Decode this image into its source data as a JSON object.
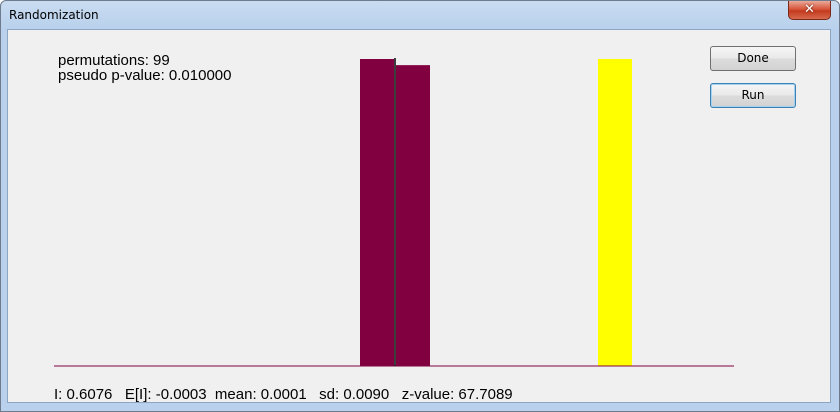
{
  "window": {
    "title": "Randomization"
  },
  "info": {
    "permutations_text": "permutations: 99",
    "pvalue_text": "pseudo p-value: 0.010000"
  },
  "buttons": {
    "done_label": "Done",
    "run_label": "Run"
  },
  "stats": {
    "summary_text": "I: 0.6076   E[I]: -0.0003  mean: 0.0001   sd: 0.0090   z-value: 67.7089"
  },
  "chart_data": {
    "type": "bar",
    "title": "",
    "xlabel": "",
    "ylabel": "",
    "bars": [
      {
        "x": -0.001,
        "value": 1.0,
        "color": "#800040"
      },
      {
        "x": 0.001,
        "value": 0.98,
        "color": "#800040"
      },
      {
        "x": 0.6076,
        "value": 1.0,
        "color": "#ffff00"
      }
    ],
    "observed_I": 0.6076,
    "expected_I": -0.0003,
    "colors": {
      "distribution": "#800040",
      "observed": "#ffff00",
      "axis": "#800040",
      "expected_line": "#000000"
    }
  }
}
